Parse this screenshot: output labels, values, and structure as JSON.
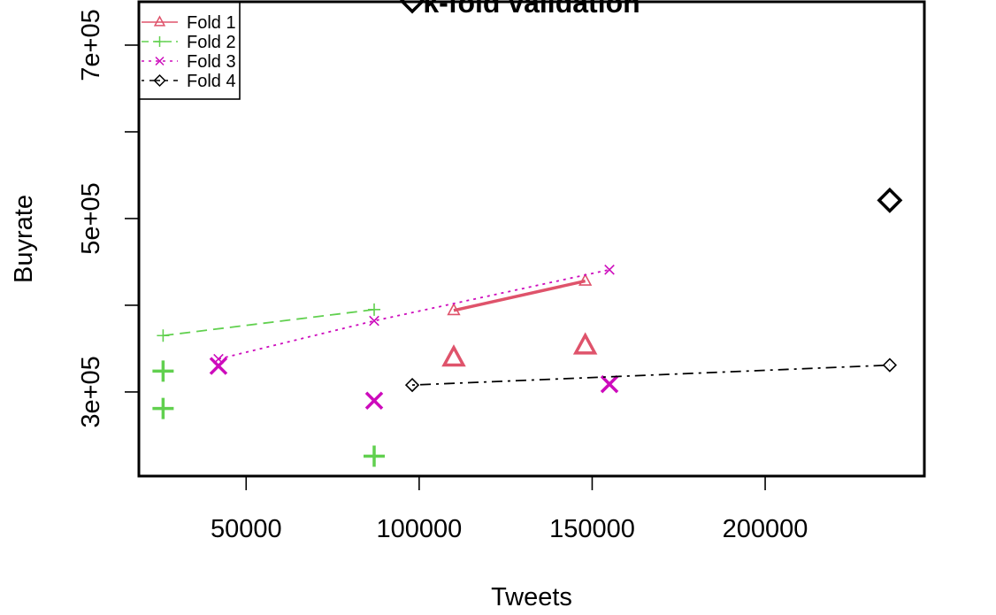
{
  "chart_data": {
    "type": "scatter",
    "title": "k-fold validation",
    "xlabel": "Tweets",
    "ylabel": "Buyrate",
    "xlim": [
      19000,
      246000
    ],
    "ylim": [
      203000,
      750000
    ],
    "x_ticks": [
      50000,
      100000,
      150000,
      200000
    ],
    "x_tick_labels": [
      "50000",
      "100000",
      "150000",
      "200000"
    ],
    "y_ticks": [
      300000,
      400000,
      500000,
      600000,
      700000
    ],
    "y_tick_labels": [
      "3e+05",
      "",
      "5e+05",
      "",
      "7e+05"
    ],
    "grid": false,
    "legend": "top-left",
    "series": [
      {
        "name": "Fold 1",
        "color": "#DF536B",
        "marker": "triangle",
        "line_style": "solid",
        "line_points": [
          {
            "x": 110000,
            "y": 394000
          },
          {
            "x": 148000,
            "y": 428000
          }
        ],
        "points": [
          {
            "x": 110000,
            "y": 339000
          },
          {
            "x": 148000,
            "y": 353000
          }
        ]
      },
      {
        "name": "Fold 2",
        "color": "#61D04F",
        "marker": "plus",
        "line_style": "dashed",
        "line_points": [
          {
            "x": 26000,
            "y": 365000
          },
          {
            "x": 87000,
            "y": 395000
          }
        ],
        "points": [
          {
            "x": 26000,
            "y": 324000
          },
          {
            "x": 26000,
            "y": 281000
          },
          {
            "x": 87000,
            "y": 226000
          }
        ]
      },
      {
        "name": "Fold 3",
        "color": "#CD0BBC",
        "marker": "cross",
        "line_style": "dotted",
        "line_points": [
          {
            "x": 42000,
            "y": 338000
          },
          {
            "x": 87000,
            "y": 382000
          },
          {
            "x": 155000,
            "y": 441000
          }
        ],
        "points": [
          {
            "x": 42000,
            "y": 330000
          },
          {
            "x": 87000,
            "y": 290000
          },
          {
            "x": 155000,
            "y": 309000
          }
        ]
      },
      {
        "name": "Fold 4",
        "color": "#000000",
        "marker": "diamond",
        "line_style": "dotdash",
        "line_points": [
          {
            "x": 98000,
            "y": 308000
          },
          {
            "x": 236000,
            "y": 331000
          }
        ],
        "points": [
          {
            "x": 98000,
            "y": 751000
          },
          {
            "x": 236000,
            "y": 521000
          }
        ]
      }
    ]
  }
}
